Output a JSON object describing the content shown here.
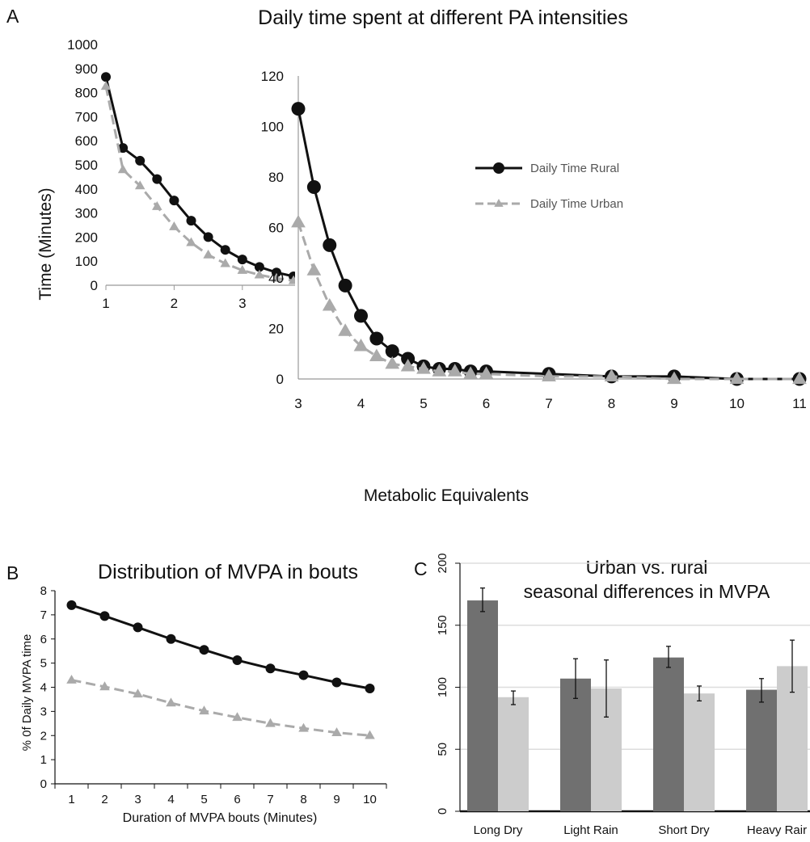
{
  "chart_data": [
    {
      "panel": "A",
      "type": "line",
      "title": "Daily time spent at different PA intensities",
      "xlabel": "Metabolic Equivalents",
      "ylabel": "Time (Minutes)",
      "xlim": [
        1,
        11
      ],
      "ylim": [
        0,
        1000
      ],
      "xticks": [
        "1",
        "2",
        "3",
        "4",
        "5",
        "6",
        "7",
        "8",
        "9",
        "10",
        "11"
      ],
      "yticks": [
        "0",
        "100",
        "200",
        "300",
        "400",
        "500",
        "600",
        "700",
        "800",
        "900",
        "1000"
      ],
      "legend": "inset, top-right",
      "series": [
        {
          "name": "Daily Time Rural",
          "color": "#111111",
          "marker": "circle",
          "line": "solid",
          "x": [
            1,
            1.25,
            1.5,
            1.75,
            2,
            2.25,
            2.5,
            2.75,
            3,
            3.25,
            3.5,
            3.75,
            4,
            4.25,
            4.5,
            4.75,
            5,
            5.25,
            5.5,
            5.75,
            6,
            7,
            8,
            9,
            10,
            11
          ],
          "y": [
            865,
            570,
            517,
            441,
            352,
            268,
            200,
            147,
            107,
            76,
            53,
            37,
            25,
            16,
            11,
            8,
            5,
            4,
            4,
            3,
            3,
            2,
            1,
            1,
            0,
            0
          ]
        },
        {
          "name": "Daily Time Urban",
          "color": "#aaaaaa",
          "marker": "triangle",
          "line": "dashed",
          "x": [
            1,
            1.25,
            1.5,
            1.75,
            2,
            2.25,
            2.5,
            2.75,
            3,
            3.25,
            3.5,
            3.75,
            4,
            4.25,
            4.5,
            4.75,
            5,
            5.25,
            5.5,
            5.75,
            6,
            7,
            8,
            9,
            10,
            11
          ],
          "y": [
            826,
            480,
            413,
            327,
            243,
            177,
            126,
            90,
            62,
            43,
            29,
            19,
            13,
            9,
            6,
            5,
            4,
            3,
            3,
            2,
            2,
            1,
            1,
            0,
            0,
            0
          ]
        }
      ],
      "inset": {
        "xlim": [
          3,
          11
        ],
        "ylim": [
          0,
          120
        ],
        "xticks": [
          "3",
          "4",
          "5",
          "6",
          "7",
          "8",
          "9",
          "10",
          "11"
        ],
        "yticks": [
          "0",
          "20",
          "40",
          "60",
          "80",
          "100",
          "120"
        ]
      }
    },
    {
      "panel": "B",
      "type": "line",
      "title": "Distribution of MVPA in bouts",
      "xlabel": "Duration of MVPA bouts (Minutes)",
      "ylabel": "% 0f Daily MVPA time",
      "xlim": [
        0.5,
        10.5
      ],
      "ylim": [
        0,
        8
      ],
      "x": [
        1,
        2,
        3,
        4,
        5,
        6,
        7,
        8,
        9,
        10
      ],
      "xticks": [
        "1",
        "2",
        "3",
        "4",
        "5",
        "6",
        "7",
        "8",
        "9",
        "10"
      ],
      "yticks": [
        "0",
        "1",
        "2",
        "3",
        "4",
        "5",
        "6",
        "7",
        "8"
      ],
      "series": [
        {
          "color": "#111111",
          "marker": "circle",
          "line": "solid",
          "values": [
            7.4,
            6.95,
            6.48,
            6.0,
            5.55,
            5.12,
            4.78,
            4.5,
            4.2,
            3.95
          ]
        },
        {
          "color": "#aaaaaa",
          "marker": "triangle",
          "line": "dashed",
          "values": [
            4.3,
            4.02,
            3.72,
            3.35,
            3.02,
            2.75,
            2.5,
            2.3,
            2.12,
            2.0
          ]
        }
      ]
    },
    {
      "panel": "C",
      "type": "bar",
      "title_line1": "Urban vs. rural",
      "title_line2": "seasonal differences in MVPA",
      "categories": [
        "Long Dry",
        "Light Rain",
        "Short Dry",
        "Heavy Rair"
      ],
      "ylim": [
        0,
        200
      ],
      "yticks": [
        "0",
        "50",
        "100",
        "150",
        "200"
      ],
      "series": [
        {
          "color": "#707070",
          "values": [
            170,
            107,
            124,
            98
          ],
          "err_low": [
            161,
            91,
            116,
            88
          ],
          "err_high": [
            180,
            123,
            133,
            107
          ]
        },
        {
          "color": "#cccccc",
          "values": [
            92,
            99,
            95,
            117
          ],
          "err_low": [
            86,
            76,
            89,
            96
          ],
          "err_high": [
            97,
            122,
            101,
            138
          ]
        }
      ]
    }
  ]
}
